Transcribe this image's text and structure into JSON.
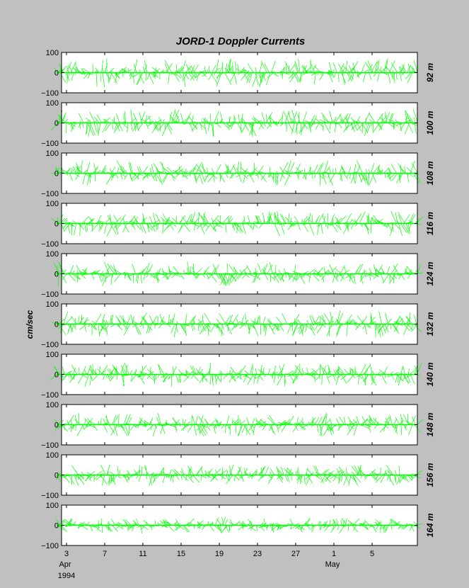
{
  "chart_data": {
    "type": "line",
    "title": "JORD-1   Doppler Currents",
    "ylabel": "cm/sec",
    "ylim": [
      -100,
      100
    ],
    "yticks": [
      "100",
      "0",
      "−100"
    ],
    "x_range_days": [
      2,
      40.5
    ],
    "xticks": [
      {
        "day": 3,
        "label": "3"
      },
      {
        "day": 7,
        "label": "7"
      },
      {
        "day": 11,
        "label": "11"
      },
      {
        "day": 15,
        "label": "15"
      },
      {
        "day": 19,
        "label": "19"
      },
      {
        "day": 23,
        "label": "23"
      },
      {
        "day": 27,
        "label": "27"
      },
      {
        "day": 31,
        "label": "1"
      },
      {
        "day": 35,
        "label": "5"
      }
    ],
    "month_labels": [
      {
        "day": 3,
        "label": "Apr"
      },
      {
        "day": 31,
        "label": "May"
      }
    ],
    "year_label": "1994",
    "data_extent_days": [
      2,
      39.8
    ],
    "series_color": "#00ff00",
    "series": [
      {
        "name": "92 m",
        "amplitude_cm_s": 75
      },
      {
        "name": "100 m",
        "amplitude_cm_s": 70
      },
      {
        "name": "108 m",
        "amplitude_cm_s": 65
      },
      {
        "name": "116 m",
        "amplitude_cm_s": 65
      },
      {
        "name": "124 m",
        "amplitude_cm_s": 62
      },
      {
        "name": "132 m",
        "amplitude_cm_s": 68
      },
      {
        "name": "140 m",
        "amplitude_cm_s": 62
      },
      {
        "name": "148 m",
        "amplitude_cm_s": 60
      },
      {
        "name": "156 m",
        "amplitude_cm_s": 55
      },
      {
        "name": "164 m",
        "amplitude_cm_s": 42
      }
    ]
  }
}
